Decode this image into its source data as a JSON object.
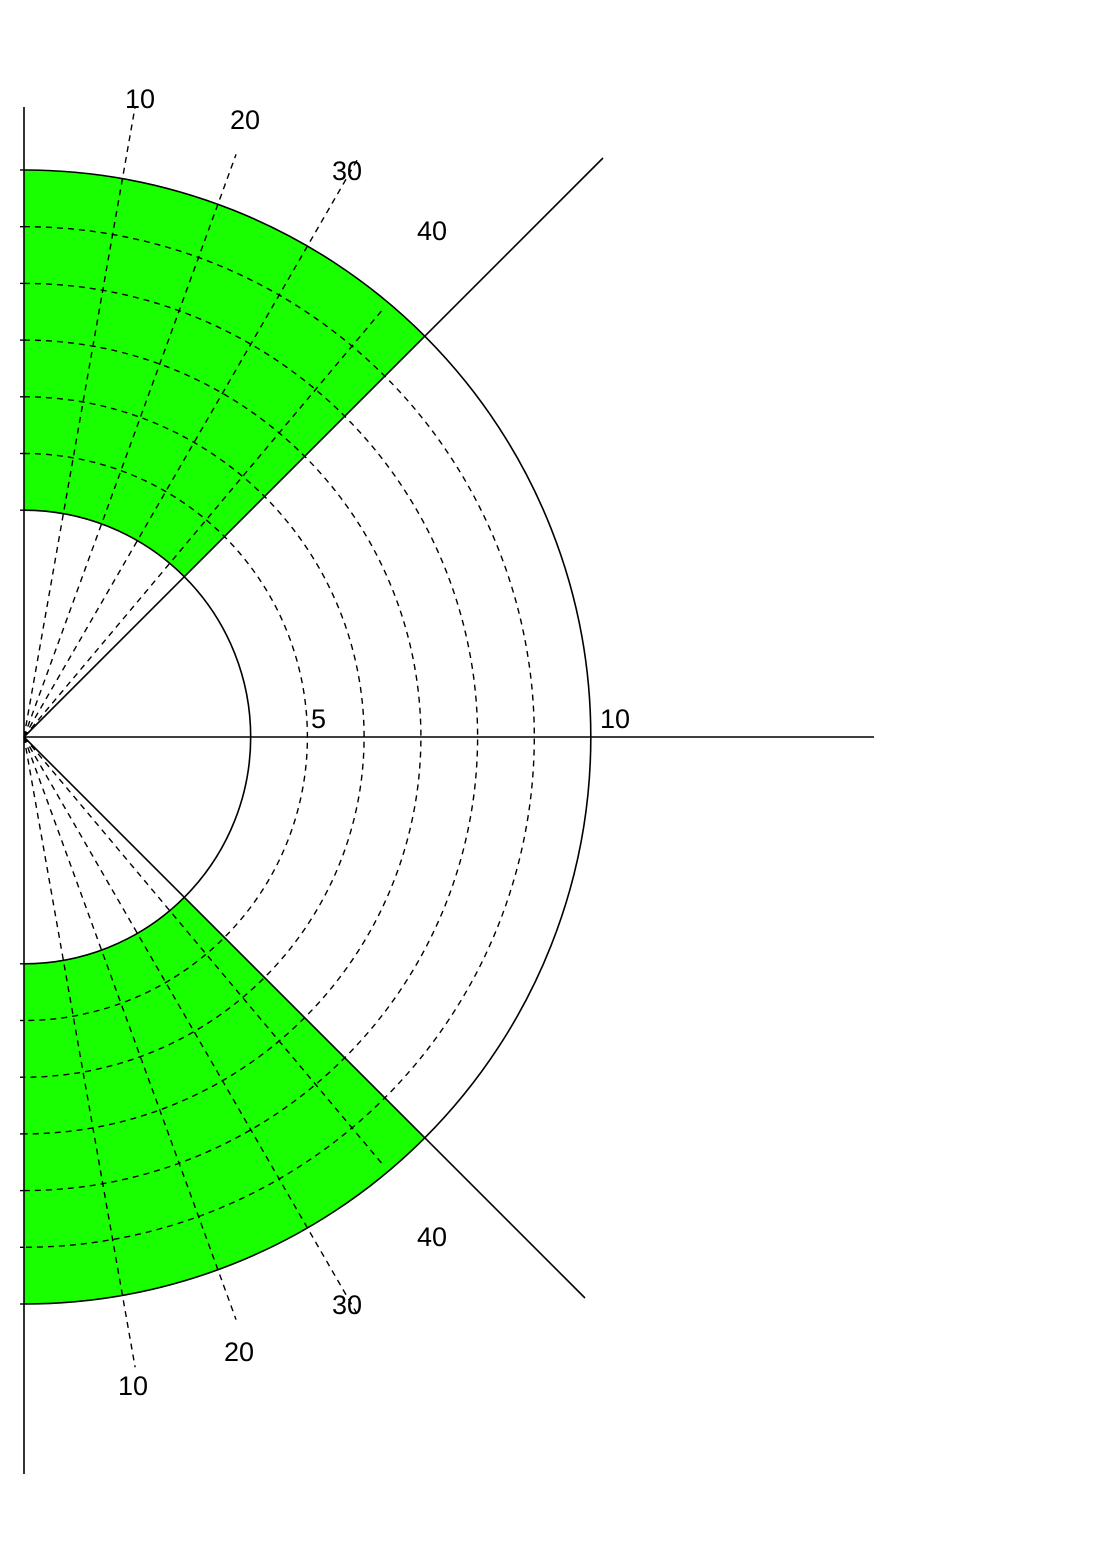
{
  "colors": {
    "fill": "#1aff00",
    "line": "#000000",
    "background": "#ffffff"
  },
  "diagram": {
    "sector_half_angle_deg": 45,
    "inner_radius": 4,
    "outer_radius": 10,
    "dashed_radii": [
      5,
      6,
      7,
      8,
      9
    ],
    "ray_angles_deg": [
      10,
      20,
      30,
      40
    ],
    "radius_labels": [
      "5",
      "10"
    ],
    "angle_labels_top": [
      "10",
      "20",
      "30",
      "40"
    ],
    "angle_labels_bottom": [
      "10",
      "20",
      "30",
      "40"
    ]
  }
}
